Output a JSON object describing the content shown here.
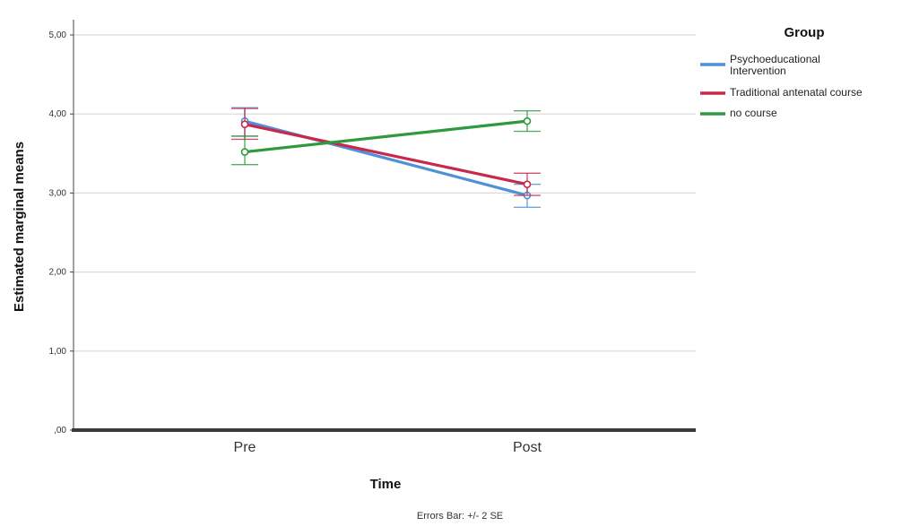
{
  "chart_data": {
    "type": "line",
    "xlabel": "Time",
    "ylabel": "Estimated marginal means",
    "categories": [
      "Pre",
      "Post"
    ],
    "y_ticks": [
      0,
      1,
      2,
      3,
      4,
      5
    ],
    "y_tick_labels": [
      ",00",
      "1,00",
      "2,00",
      "3,00",
      "4,00",
      "5,00"
    ],
    "ylim": [
      0,
      5.3
    ],
    "grid": true,
    "legend": {
      "title": "Group",
      "placement": "right",
      "entries": [
        {
          "lines": [
            "Psychoeducational",
            "Intervention"
          ]
        },
        {
          "lines": [
            "Traditional antenatal course"
          ]
        },
        {
          "lines": [
            "no course"
          ]
        }
      ]
    },
    "series": [
      {
        "name": "Psychoeducational Intervention",
        "color": "#4f90d9",
        "values": [
          3.91,
          2.97
        ],
        "err_low": [
          3.72,
          2.82
        ],
        "err_high": [
          4.08,
          3.11
        ]
      },
      {
        "name": "Traditional antenatal course",
        "color": "#c8284a",
        "values": [
          3.87,
          3.11
        ],
        "err_low": [
          3.68,
          2.97
        ],
        "err_high": [
          4.07,
          3.25
        ]
      },
      {
        "name": "no course",
        "color": "#2e9a3e",
        "values": [
          3.52,
          3.91
        ],
        "err_low": [
          3.36,
          3.78
        ],
        "err_high": [
          3.72,
          4.04
        ]
      }
    ],
    "footnote": "Errors Bar: +/- 2 SE"
  }
}
